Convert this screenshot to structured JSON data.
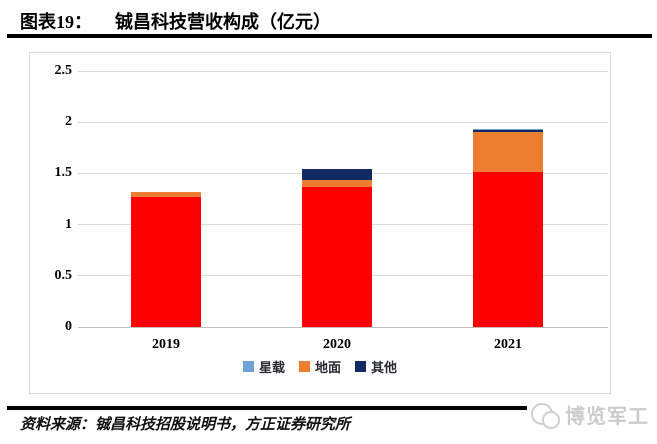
{
  "header": {
    "figure_label": "图表19：",
    "figure_title": "铖昌科技营收构成（亿元）"
  },
  "chart_data": {
    "type": "bar",
    "stacked": true,
    "unit": "亿元",
    "categories": [
      "2019",
      "2020",
      "2021"
    ],
    "series": [
      {
        "name": "未标注图例(红色)",
        "color": "#ff0000",
        "values": [
          1.27,
          1.37,
          1.51
        ]
      },
      {
        "name": "地面",
        "color": "#ed7d31",
        "values": [
          0.05,
          0.07,
          0.39
        ]
      },
      {
        "name": "其他",
        "color": "#122a63",
        "values": [
          0,
          0.11,
          0.02
        ]
      },
      {
        "name": "星载",
        "color": "#6fa0d8",
        "values": [
          0,
          0,
          0.01
        ]
      }
    ],
    "totals": [
      1.32,
      1.55,
      1.93
    ],
    "legend": [
      {
        "label": "星载",
        "color": "#6fa0d8"
      },
      {
        "label": "地面",
        "color": "#ed7d31"
      },
      {
        "label": "其他",
        "color": "#122a63"
      }
    ],
    "legend_position": "bottom",
    "grid": true,
    "ylim": [
      0,
      2.5
    ],
    "ytick_step": 0.5,
    "yticks": [
      "0",
      "0.5",
      "1",
      "1.5",
      "2",
      "2.5"
    ]
  },
  "footer": {
    "source": "资料来源：铖昌科技招股说明书，方正证券研究所"
  },
  "watermark": {
    "text": "博览军工"
  }
}
